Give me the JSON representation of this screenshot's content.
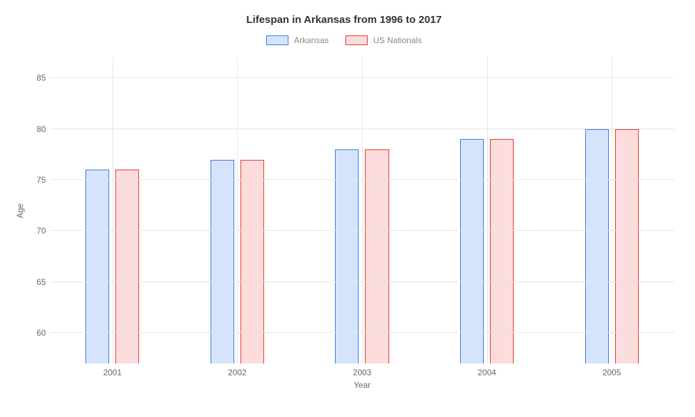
{
  "chart": {
    "type": "bar",
    "title": "Lifespan in Arkansas from 1996 to 2017",
    "title_fontsize": 15,
    "title_color": "#333333",
    "xlabel": "Year",
    "ylabel": "Age",
    "label_fontsize": 12,
    "label_color": "#666666",
    "tick_fontsize": 12,
    "tick_color": "#666666",
    "background_color": "#ffffff",
    "grid_color": "#e6e6e6",
    "ylim": [
      57,
      87
    ],
    "yticks": [
      60,
      65,
      70,
      75,
      80,
      85
    ],
    "categories": [
      "2001",
      "2002",
      "2003",
      "2004",
      "2005"
    ],
    "series": [
      {
        "name": "Arkansas",
        "values": [
          76,
          77,
          78,
          79,
          80
        ],
        "fill": "#d6e4fb",
        "border": "#3c78e7"
      },
      {
        "name": "US Nationals",
        "values": [
          76,
          77,
          78,
          79,
          80
        ],
        "fill": "#fcdcdc",
        "border": "#e33b33"
      }
    ],
    "bar_width_pct": 3.8,
    "bar_gap_pct": 1.0,
    "group_positions_pct": [
      10,
      30,
      50,
      70,
      90
    ]
  }
}
